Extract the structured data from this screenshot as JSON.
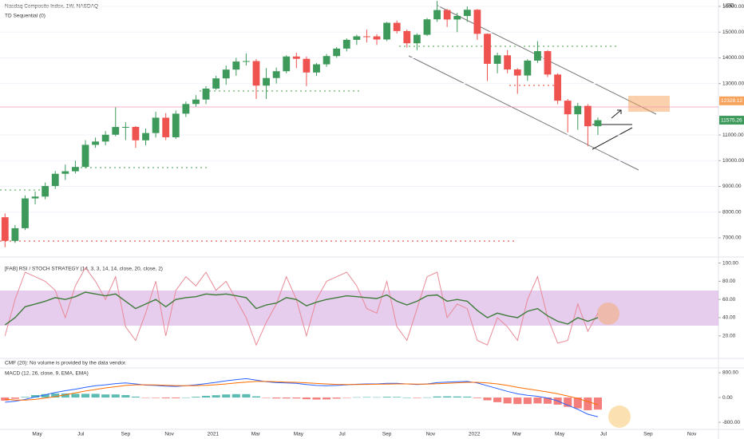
{
  "chart_data": [
    {
      "type": "candlestick",
      "title": "Nasdaq Composite Index, 1W, NASDAQ",
      "subtitle": "TD Sequential (0)",
      "currency": "USD",
      "x": [
        0,
        2,
        4,
        6,
        8,
        10,
        12,
        14,
        16,
        18,
        20,
        22,
        24,
        26,
        28,
        30,
        32,
        34,
        36,
        38,
        40,
        42,
        44,
        46,
        48,
        50,
        52,
        54,
        56,
        58,
        60,
        62,
        64,
        66,
        68,
        70,
        72,
        74,
        76,
        78,
        80,
        82,
        84,
        86,
        88,
        90,
        92,
        94,
        96,
        98,
        100,
        102,
        104,
        106,
        108,
        110,
        112,
        114,
        116,
        118
      ],
      "open": [
        7800,
        6880,
        7373,
        8532,
        8604,
        9014,
        9490,
        9588,
        9757,
        10617,
        10745,
        11010,
        11311,
        11313,
        10793,
        11075,
        11672,
        10911,
        11829,
        12205,
        12377,
        12804,
        13201,
        13543,
        13856,
        13874,
        12920,
        13215,
        13480,
        14052,
        13962,
        13430,
        13748,
        14069,
        14360,
        14701,
        14837,
        14835,
        14714,
        15363,
        15043,
        14567,
        14897,
        15498,
        15860,
        15491,
        15630,
        15871,
        14935,
        13768,
        14098,
        13548,
        13313,
        13893,
        14261,
        13351,
        12334,
        11805,
        12131,
        11340
      ],
      "high": [
        7950,
        7500,
        8650,
        8800,
        9150,
        9600,
        9850,
        10000,
        10800,
        10900,
        11150,
        12074,
        11500,
        11350,
        11250,
        11900,
        11850,
        11950,
        12300,
        12550,
        12900,
        13300,
        13700,
        14000,
        14175,
        13950,
        13600,
        13620,
        14100,
        14200,
        14050,
        13800,
        14150,
        14420,
        14760,
        14900,
        15100,
        14920,
        15400,
        15450,
        15100,
        14950,
        15550,
        16212,
        15900,
        15750,
        16000,
        15900,
        14950,
        14200,
        14300,
        13600,
        13950,
        14650,
        14300,
        13400,
        12400,
        12250,
        12200,
        11680
      ],
      "low": [
        6630,
        6800,
        7300,
        8300,
        8500,
        8900,
        9250,
        9500,
        9700,
        10500,
        10600,
        10950,
        10800,
        10500,
        10600,
        10900,
        10800,
        10850,
        11700,
        12100,
        12200,
        12750,
        12950,
        13300,
        13700,
        12400,
        12400,
        13000,
        13400,
        13600,
        12900,
        13300,
        13650,
        14000,
        14250,
        14500,
        14600,
        14500,
        14650,
        14950,
        14400,
        14300,
        14850,
        15400,
        15200,
        15000,
        15400,
        14700,
        13100,
        13400,
        13400,
        12600,
        13100,
        13800,
        13250,
        12200,
        11100,
        11200,
        10565,
        11000
      ],
      "close": [
        6880,
        7373,
        8532,
        8604,
        9014,
        9490,
        9588,
        9757,
        10617,
        10745,
        11010,
        11311,
        11313,
        10793,
        11075,
        11672,
        10911,
        11829,
        12205,
        12377,
        12804,
        13201,
        13543,
        13856,
        13874,
        12920,
        13215,
        13480,
        14052,
        13962,
        13430,
        13748,
        14069,
        14360,
        14701,
        14837,
        14835,
        14714,
        15363,
        15043,
        14567,
        14897,
        15498,
        15860,
        15491,
        15630,
        15871,
        14935,
        13768,
        14098,
        13548,
        13313,
        13893,
        14261,
        13351,
        12334,
        11805,
        12131,
        11340,
        11575
      ],
      "up_color": "#3d9a5b",
      "down_color": "#ef5350",
      "xlim": [
        -1,
        142
      ],
      "xticks": [
        {
          "value": 6.4,
          "label": "May"
        },
        {
          "value": 15.1,
          "label": "Jul"
        },
        {
          "value": 24,
          "label": "Sep"
        },
        {
          "value": 32.7,
          "label": "Nov"
        },
        {
          "value": 41.4,
          "label": "2021"
        },
        {
          "value": 49.9,
          "label": "Mar"
        },
        {
          "value": 58.4,
          "label": "May"
        },
        {
          "value": 67.1,
          "label": "Jul"
        },
        {
          "value": 76,
          "label": "Sep"
        },
        {
          "value": 84.7,
          "label": "Nov"
        },
        {
          "value": 93.4,
          "label": "2022"
        },
        {
          "value": 101.9,
          "label": "Mar"
        },
        {
          "value": 110.4,
          "label": "May"
        },
        {
          "value": 119.1,
          "label": "Jul"
        },
        {
          "value": 128,
          "label": "Sep"
        },
        {
          "value": 136.7,
          "label": "Nov"
        }
      ],
      "ylim": [
        6470,
        16250
      ],
      "yticks": [
        {
          "value": 16000,
          "label": "16000.00"
        },
        {
          "value": 15000,
          "label": "15000.00"
        },
        {
          "value": 14000,
          "label": "14000.00"
        },
        {
          "value": 13000,
          "label": "13000.00"
        },
        {
          "value": 11000,
          "label": "11000.00"
        },
        {
          "value": 10000,
          "label": "10000.00"
        },
        {
          "value": 9000,
          "label": "9000.00"
        },
        {
          "value": 8000,
          "label": "8000.00"
        },
        {
          "value": 7000,
          "label": "7000.00"
        }
      ],
      "grid": true,
      "price_lines": [
        {
          "value": 12328.12,
          "color": "#f7a35c"
        },
        {
          "value": 11575.26,
          "color": "#3d9a5b"
        }
      ]
    },
    {
      "type": "line",
      "title": "[FAB] RSI / STOCH STRATEGY (14, 3, 3, 14, 14, close, 20, close, 2)",
      "series": [
        {
          "color": "#e88a96",
          "values": [
            20,
            60,
            90,
            85,
            80,
            70,
            40,
            75,
            95,
            80,
            60,
            85,
            30,
            15,
            45,
            80,
            20,
            70,
            85,
            75,
            90,
            70,
            80,
            60,
            40,
            10,
            35,
            55,
            85,
            60,
            20,
            60,
            80,
            85,
            90,
            75,
            50,
            45,
            80,
            30,
            15,
            50,
            85,
            90,
            40,
            55,
            50,
            15,
            10,
            40,
            30,
            15,
            60,
            85,
            40,
            12,
            15,
            55,
            25,
            45
          ]
        },
        {
          "color": "#3f7d3a",
          "values": [
            32,
            40,
            52,
            55,
            58,
            62,
            60,
            63,
            68,
            66,
            64,
            66,
            58,
            50,
            55,
            60,
            52,
            60,
            62,
            63,
            66,
            65,
            66,
            64,
            62,
            50,
            54,
            56,
            62,
            60,
            53,
            57,
            60,
            62,
            64,
            63,
            62,
            61,
            65,
            58,
            54,
            58,
            64,
            65,
            58,
            60,
            58,
            48,
            40,
            45,
            42,
            40,
            47,
            50,
            42,
            36,
            33,
            40,
            36,
            40
          ]
        }
      ],
      "ylim": [
        -3,
        104
      ],
      "yticks": [
        {
          "value": 100,
          "label": "100.00"
        },
        {
          "value": 80,
          "label": "80.00"
        },
        {
          "value": 60,
          "label": "60.00"
        },
        {
          "value": 40,
          "label": "40.00"
        },
        {
          "value": 20,
          "label": "20.00"
        }
      ]
    },
    {
      "type": "note",
      "title": "CMF (20): No volume is provided by the data vendor."
    },
    {
      "type": "macd",
      "title": "MACD (12, 26, close, 9, EMA, EMA)",
      "histogram": {
        "up_color": "#26a69a",
        "down_color": "#ef5350",
        "values": [
          -100,
          -40,
          20,
          80,
          110,
          130,
          130,
          120,
          120,
          120,
          100,
          100,
          80,
          30,
          -10,
          -15,
          -25,
          -25,
          0,
          25,
          55,
          75,
          100,
          110,
          110,
          40,
          -10,
          -30,
          -30,
          -30,
          -55,
          -65,
          -60,
          -35,
          -10,
          10,
          15,
          10,
          25,
          20,
          0,
          -15,
          5,
          35,
          40,
          35,
          30,
          -20,
          -90,
          -150,
          -190,
          -210,
          -210,
          -190,
          -200,
          -230,
          -300,
          -350,
          -410,
          -390
        ]
      },
      "series": [
        {
          "color": "#2962ff",
          "values": [
            -150,
            -120,
            -60,
            20,
            90,
            160,
            220,
            270,
            330,
            380,
            410,
            450,
            470,
            440,
            400,
            390,
            370,
            360,
            380,
            410,
            450,
            490,
            540,
            580,
            610,
            560,
            510,
            480,
            470,
            460,
            420,
            390,
            380,
            390,
            410,
            430,
            440,
            440,
            460,
            460,
            440,
            420,
            440,
            480,
            500,
            510,
            520,
            470,
            380,
            290,
            200,
            120,
            70,
            40,
            -20,
            -110,
            -250,
            -380,
            -540,
            -620
          ]
        },
        {
          "color": "#ff6d00",
          "values": [
            -50,
            -80,
            -80,
            -60,
            -20,
            30,
            90,
            150,
            210,
            260,
            310,
            350,
            390,
            410,
            410,
            405,
            395,
            385,
            380,
            385,
            395,
            415,
            440,
            470,
            500,
            520,
            520,
            510,
            500,
            490,
            475,
            455,
            440,
            425,
            420,
            420,
            425,
            430,
            435,
            440,
            440,
            435,
            435,
            445,
            460,
            475,
            490,
            490,
            470,
            440,
            390,
            330,
            280,
            230,
            180,
            120,
            50,
            -30,
            -130,
            -230
          ]
        }
      ],
      "ylim": [
        -1030,
        1110
      ],
      "yticks": [
        {
          "value": 800,
          "label": "800.00"
        },
        {
          "value": 0,
          "label": "0.00"
        },
        {
          "value": -800,
          "label": "-800.00"
        }
      ]
    }
  ]
}
